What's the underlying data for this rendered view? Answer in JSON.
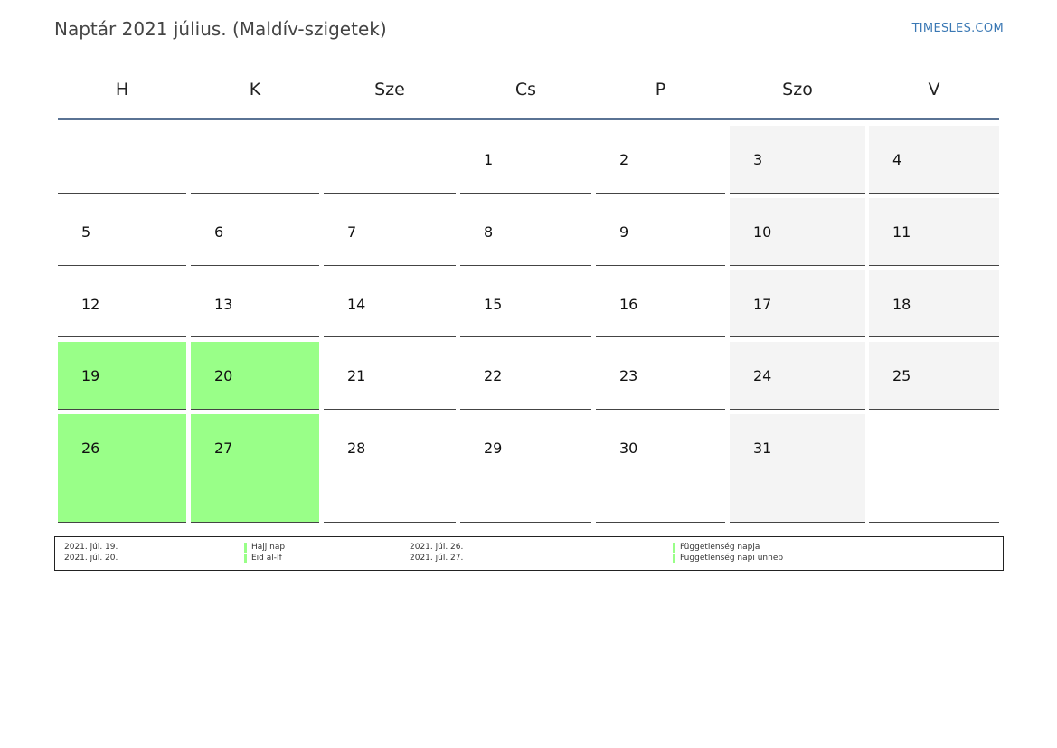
{
  "header": {
    "title": "Naptár 2021 július. (Maldív-szigetek)",
    "brand": "TIMESLES.COM"
  },
  "weekdays": [
    "H",
    "K",
    "Sze",
    "Cs",
    "P",
    "Szo",
    "V"
  ],
  "calendar": {
    "weeks": [
      [
        "",
        "",
        "",
        "1",
        "2",
        "3",
        "4"
      ],
      [
        "5",
        "6",
        "7",
        "8",
        "9",
        "10",
        "11"
      ],
      [
        "12",
        "13",
        "14",
        "15",
        "16",
        "17",
        "18"
      ],
      [
        "19",
        "20",
        "21",
        "22",
        "23",
        "24",
        "25"
      ],
      [
        "26",
        "27",
        "28",
        "29",
        "30",
        "31",
        ""
      ]
    ],
    "holidays": [
      "19",
      "20",
      "26",
      "27"
    ],
    "weekend_color": "#f4f4f4",
    "holiday_color": "#99ff88"
  },
  "legend": [
    {
      "date": "2021. júl. 19.",
      "name": "Hajj nap"
    },
    {
      "date": "2021. júl. 20.",
      "name": "Eid al-If"
    },
    {
      "date": "2021. júl. 26.",
      "name": "Függetlenség napja"
    },
    {
      "date": "2021. júl. 27.",
      "name": "Függetlenség napi ünnep"
    }
  ]
}
